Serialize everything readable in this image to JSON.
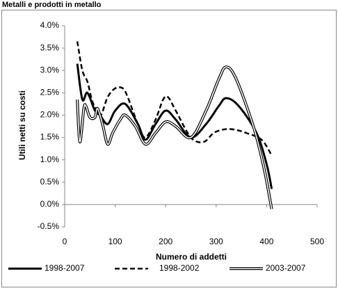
{
  "chart_data": {
    "type": "line",
    "title": "Metalli e prodotti in metallo",
    "x_label": "Numero di addetti",
    "y_label": "Utili netti su costi",
    "xlim": [
      0,
      500
    ],
    "xticks": [
      0,
      100,
      200,
      300,
      400,
      500
    ],
    "ylim": [
      -0.5,
      4.0
    ],
    "yticks": [
      {
        "value": -0.5,
        "label": "-0.5%"
      },
      {
        "value": 0,
        "label": "0.0%"
      },
      {
        "value": 0.5,
        "label": "0.5%"
      },
      {
        "value": 1.0,
        "label": "1.0%"
      },
      {
        "value": 1.5,
        "label": "1.5%"
      },
      {
        "value": 2.0,
        "label": "2.0%"
      },
      {
        "value": 2.5,
        "label": "2.5%"
      },
      {
        "value": 3.0,
        "label": "3.0%"
      },
      {
        "value": 3.5,
        "label": "3.5%"
      },
      {
        "value": 4.0,
        "label": "4.0%"
      }
    ],
    "legend": "bottom",
    "series": [
      {
        "name": "1998-2007",
        "color": "#000000",
        "style": "solid",
        "x": [
          25,
          35,
          45,
          60,
          70,
          85,
          100,
          120,
          145,
          160,
          180,
          200,
          220,
          250,
          280,
          305,
          320,
          345,
          380,
          400,
          410
        ],
        "values": [
          3.15,
          2.35,
          2.5,
          2.1,
          2.0,
          1.8,
          2.1,
          2.25,
          1.8,
          1.45,
          1.8,
          2.1,
          1.9,
          1.5,
          1.8,
          2.2,
          2.38,
          2.2,
          1.6,
          0.9,
          0.35
        ]
      },
      {
        "name": "1998-2002",
        "color": "#000000",
        "style": "dashed",
        "x": [
          25,
          35,
          45,
          55,
          65,
          72,
          85,
          100,
          115,
          125,
          145,
          160,
          180,
          195,
          205,
          220,
          250,
          275,
          295,
          315,
          335,
          360,
          390,
          410
        ],
        "values": [
          3.65,
          3.0,
          2.75,
          2.3,
          2.1,
          2.0,
          2.4,
          2.6,
          2.6,
          2.4,
          1.8,
          1.5,
          1.9,
          2.35,
          2.4,
          2.1,
          1.5,
          1.4,
          1.6,
          1.68,
          1.68,
          1.6,
          1.45,
          1.1
        ]
      },
      {
        "name": "2003-2007",
        "color": "#000000",
        "style": "double",
        "x": [
          25,
          30,
          38,
          42,
          50,
          60,
          65,
          75,
          85,
          95,
          110,
          120,
          140,
          160,
          180,
          200,
          220,
          250,
          280,
          305,
          320,
          340,
          375,
          395,
          410
        ],
        "values": [
          2.35,
          1.4,
          2.15,
          2.2,
          1.95,
          1.95,
          2.15,
          1.8,
          1.35,
          1.6,
          1.9,
          2.0,
          1.75,
          1.35,
          1.6,
          1.85,
          1.75,
          1.5,
          2.1,
          2.8,
          3.08,
          2.8,
          1.7,
          0.8,
          -0.1
        ]
      }
    ]
  }
}
